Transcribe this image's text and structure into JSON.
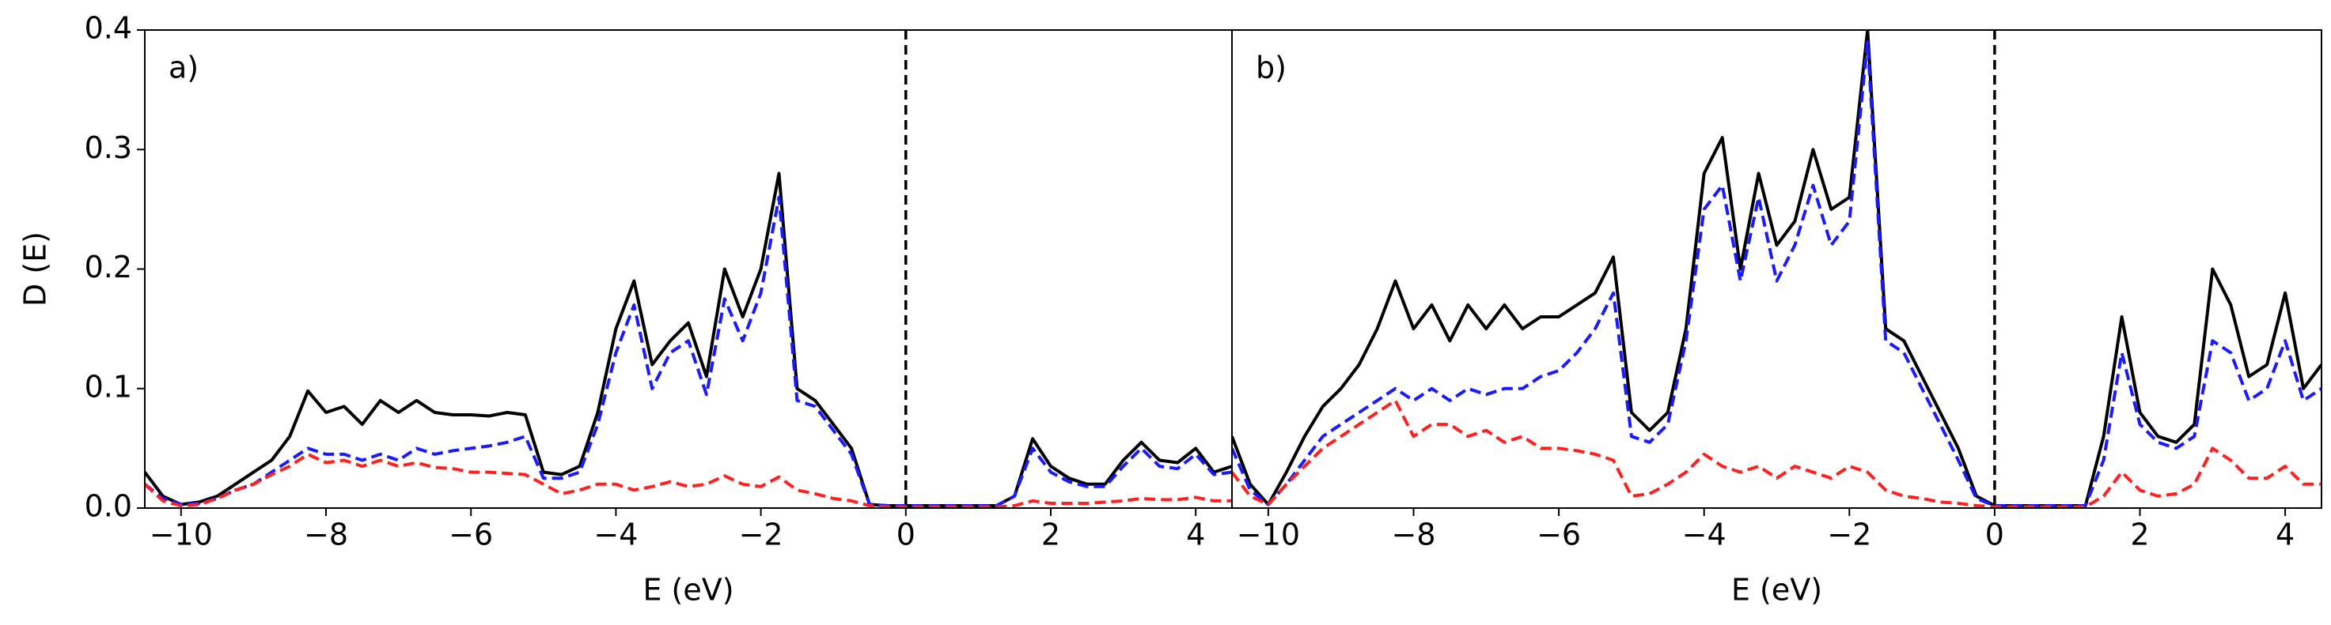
{
  "chart_data": [
    {
      "type": "line",
      "label": "a)",
      "xlabel": "E (eV)",
      "ylabel": "D (E)",
      "xlim": [
        -10.5,
        4.5
      ],
      "ylim": [
        0,
        0.4
      ],
      "xticks": [
        {
          "value": -10,
          "label": "−10"
        },
        {
          "value": -8,
          "label": "−8"
        },
        {
          "value": -6,
          "label": "−6"
        },
        {
          "value": -4,
          "label": "−4"
        },
        {
          "value": -2,
          "label": "−2"
        },
        0,
        2,
        4
      ],
      "yticks": [
        {
          "value": 0,
          "label": "0.0"
        },
        0.1,
        0.2,
        0.3,
        0.4
      ],
      "vline": 0,
      "x": [
        -10.5,
        -10.25,
        -10,
        -9.75,
        -9.5,
        -9.25,
        -9,
        -8.75,
        -8.5,
        -8.25,
        -8,
        -7.75,
        -7.5,
        -7.25,
        -7,
        -6.75,
        -6.5,
        -6.25,
        -6,
        -5.75,
        -5.5,
        -5.25,
        -5,
        -4.75,
        -4.5,
        -4.25,
        -4,
        -3.75,
        -3.5,
        -3.25,
        -3,
        -2.75,
        -2.5,
        -2.25,
        -2,
        -1.75,
        -1.5,
        -1.25,
        -1,
        -0.75,
        -0.5,
        -0.25,
        0,
        0.25,
        0.5,
        0.75,
        1,
        1.25,
        1.5,
        1.75,
        2,
        2.25,
        2.5,
        2.75,
        3,
        3.25,
        3.5,
        3.75,
        4,
        4.25,
        4.5
      ],
      "series": [
        {
          "color": "#000000",
          "linestyle": "solid",
          "values": [
            0.03,
            0.01,
            0.003,
            0.005,
            0.01,
            0.02,
            0.03,
            0.04,
            0.06,
            0.098,
            0.08,
            0.085,
            0.07,
            0.09,
            0.08,
            0.09,
            0.08,
            0.078,
            0.078,
            0.077,
            0.08,
            0.078,
            0.03,
            0.028,
            0.035,
            0.08,
            0.15,
            0.19,
            0.12,
            0.14,
            0.155,
            0.11,
            0.2,
            0.16,
            0.2,
            0.28,
            0.1,
            0.09,
            0.07,
            0.05,
            0.003,
            0.002,
            0.002,
            0.002,
            0.002,
            0.002,
            0.002,
            0.002,
            0.01,
            0.058,
            0.035,
            0.025,
            0.02,
            0.02,
            0.04,
            0.055,
            0.04,
            0.038,
            0.05,
            0.03,
            0.035
          ]
        },
        {
          "color": "#1a1aff",
          "linestyle": "dashed",
          "values": [
            0.02,
            0.008,
            0.003,
            0.004,
            0.008,
            0.015,
            0.02,
            0.03,
            0.04,
            0.05,
            0.045,
            0.045,
            0.04,
            0.045,
            0.04,
            0.05,
            0.045,
            0.048,
            0.05,
            0.052,
            0.055,
            0.06,
            0.025,
            0.025,
            0.03,
            0.07,
            0.13,
            0.17,
            0.1,
            0.13,
            0.14,
            0.095,
            0.175,
            0.14,
            0.18,
            0.26,
            0.09,
            0.085,
            0.065,
            0.045,
            0.003,
            0.002,
            0.002,
            0.002,
            0.002,
            0.002,
            0.002,
            0.002,
            0.01,
            0.05,
            0.03,
            0.022,
            0.018,
            0.018,
            0.035,
            0.05,
            0.035,
            0.033,
            0.045,
            0.028,
            0.03
          ]
        },
        {
          "color": "#ff2020",
          "linestyle": "dashed",
          "values": [
            0.02,
            0.006,
            0.002,
            0.003,
            0.008,
            0.015,
            0.02,
            0.028,
            0.035,
            0.045,
            0.038,
            0.04,
            0.035,
            0.04,
            0.035,
            0.038,
            0.034,
            0.033,
            0.03,
            0.03,
            0.029,
            0.028,
            0.02,
            0.012,
            0.015,
            0.02,
            0.02,
            0.015,
            0.018,
            0.022,
            0.018,
            0.02,
            0.027,
            0.02,
            0.018,
            0.026,
            0.015,
            0.012,
            0.008,
            0.006,
            0.002,
            0.001,
            0.001,
            0.001,
            0.001,
            0.001,
            0.001,
            0.001,
            0.002,
            0.006,
            0.004,
            0.004,
            0.004,
            0.005,
            0.006,
            0.008,
            0.007,
            0.007,
            0.009,
            0.006,
            0.006
          ]
        }
      ]
    },
    {
      "type": "line",
      "label": "b)",
      "xlabel": "E (eV)",
      "xlim": [
        -10.5,
        4.5
      ],
      "ylim": [
        0,
        0.4
      ],
      "xticks": [
        {
          "value": -10,
          "label": "−10"
        },
        {
          "value": -8,
          "label": "−8"
        },
        {
          "value": -6,
          "label": "−6"
        },
        {
          "value": -4,
          "label": "−4"
        },
        {
          "value": -2,
          "label": "−2"
        },
        0,
        2,
        4
      ],
      "vline": 0,
      "x": [
        -10.5,
        -10.25,
        -10,
        -9.75,
        -9.5,
        -9.25,
        -9,
        -8.75,
        -8.5,
        -8.25,
        -8,
        -7.75,
        -7.5,
        -7.25,
        -7,
        -6.75,
        -6.5,
        -6.25,
        -6,
        -5.75,
        -5.5,
        -5.25,
        -5,
        -4.75,
        -4.5,
        -4.25,
        -4,
        -3.75,
        -3.5,
        -3.25,
        -3,
        -2.75,
        -2.5,
        -2.25,
        -2,
        -1.75,
        -1.5,
        -1.25,
        -1,
        -0.75,
        -0.5,
        -0.25,
        0,
        0.25,
        0.5,
        0.75,
        1,
        1.25,
        1.5,
        1.75,
        2,
        2.25,
        2.5,
        2.75,
        3,
        3.25,
        3.5,
        3.75,
        4,
        4.25,
        4.5
      ],
      "series": [
        {
          "color": "#000000",
          "linestyle": "solid",
          "values": [
            0.06,
            0.02,
            0.003,
            0.03,
            0.06,
            0.085,
            0.1,
            0.12,
            0.15,
            0.19,
            0.15,
            0.17,
            0.14,
            0.17,
            0.15,
            0.17,
            0.15,
            0.16,
            0.16,
            0.17,
            0.18,
            0.21,
            0.08,
            0.065,
            0.08,
            0.15,
            0.28,
            0.31,
            0.2,
            0.28,
            0.22,
            0.24,
            0.3,
            0.25,
            0.26,
            0.4,
            0.15,
            0.14,
            0.11,
            0.08,
            0.05,
            0.01,
            0.002,
            0.002,
            0.002,
            0.002,
            0.002,
            0.002,
            0.06,
            0.16,
            0.08,
            0.06,
            0.055,
            0.07,
            0.2,
            0.17,
            0.11,
            0.12,
            0.18,
            0.1,
            0.12
          ]
        },
        {
          "color": "#1a1aff",
          "linestyle": "dashed",
          "values": [
            0.05,
            0.015,
            0.003,
            0.02,
            0.04,
            0.06,
            0.07,
            0.08,
            0.09,
            0.1,
            0.09,
            0.1,
            0.09,
            0.1,
            0.095,
            0.1,
            0.1,
            0.11,
            0.115,
            0.13,
            0.15,
            0.18,
            0.06,
            0.055,
            0.07,
            0.14,
            0.25,
            0.27,
            0.19,
            0.26,
            0.19,
            0.22,
            0.27,
            0.22,
            0.24,
            0.39,
            0.14,
            0.13,
            0.1,
            0.07,
            0.04,
            0.008,
            0.002,
            0.002,
            0.002,
            0.002,
            0.002,
            0.002,
            0.04,
            0.13,
            0.07,
            0.055,
            0.05,
            0.06,
            0.14,
            0.13,
            0.09,
            0.1,
            0.14,
            0.09,
            0.1
          ]
        },
        {
          "color": "#ff2020",
          "linestyle": "dashed",
          "values": [
            0.03,
            0.01,
            0.003,
            0.02,
            0.035,
            0.05,
            0.06,
            0.07,
            0.08,
            0.09,
            0.06,
            0.07,
            0.07,
            0.06,
            0.065,
            0.055,
            0.06,
            0.05,
            0.05,
            0.048,
            0.045,
            0.04,
            0.01,
            0.012,
            0.02,
            0.03,
            0.045,
            0.035,
            0.03,
            0.035,
            0.025,
            0.035,
            0.03,
            0.025,
            0.035,
            0.03,
            0.015,
            0.01,
            0.008,
            0.005,
            0.004,
            0.002,
            0.001,
            0.001,
            0.001,
            0.001,
            0.001,
            0.001,
            0.01,
            0.03,
            0.015,
            0.01,
            0.012,
            0.02,
            0.05,
            0.04,
            0.025,
            0.025,
            0.035,
            0.02,
            0.02
          ]
        }
      ]
    }
  ]
}
